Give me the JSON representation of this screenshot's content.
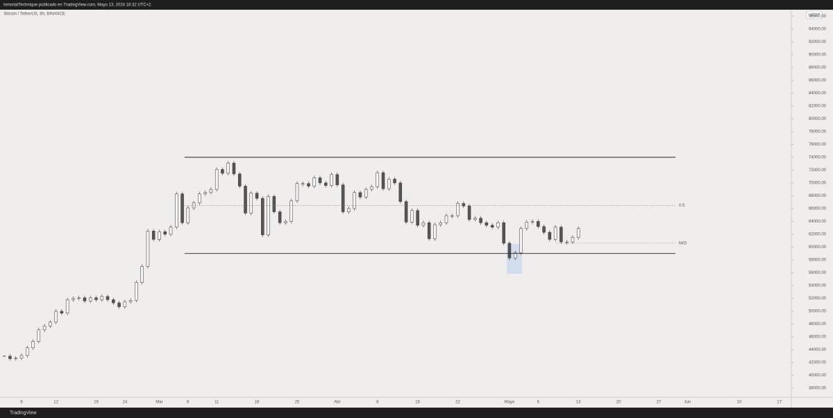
{
  "chart_data": {
    "type": "candlestick",
    "header": "InmortalTechnique publicado en TradingView.com, Mayo 13, 2024 16:32 UTC+2",
    "title": "Bitcoin / TetherUS, 8h, BINANCE",
    "currency": "USDT",
    "brand": "TradingView",
    "up_color": "#f4f4f4",
    "down_color": "#555555",
    "categories": [
      null,
      null,
      null,
      "6",
      null,
      null,
      null,
      null,
      null,
      "12",
      null,
      null,
      null,
      null,
      null,
      null,
      "19",
      null,
      null,
      null,
      null,
      "24",
      null,
      null,
      null,
      null,
      null,
      "Mar",
      null,
      null,
      null,
      null,
      "6",
      null,
      null,
      null,
      null,
      "11",
      null,
      null,
      null,
      null,
      null,
      null,
      "18",
      null,
      null,
      null,
      null,
      null,
      null,
      "25",
      null,
      null,
      null,
      null,
      null,
      null,
      "Abr",
      null,
      null,
      null,
      null,
      null,
      null,
      "8",
      null,
      null,
      null,
      null,
      null,
      null,
      "15",
      null,
      null,
      null,
      null,
      null,
      null,
      "22",
      null,
      null,
      null,
      null,
      null,
      null,
      null,
      null,
      "Mayo",
      null,
      null,
      null,
      null,
      "6",
      null,
      null,
      null,
      null,
      null,
      null,
      "13",
      null,
      null,
      null,
      null,
      null,
      null,
      "20",
      null,
      null,
      null,
      null,
      null,
      null,
      "27",
      null,
      null,
      null,
      null,
      "Jun",
      null,
      null,
      null,
      null,
      null,
      null,
      null,
      null,
      "10",
      null,
      null,
      null,
      null,
      null,
      null,
      "17",
      null,
      null,
      null
    ],
    "values": [
      43000,
      42600,
      42700,
      43100,
      44300,
      45300,
      47100,
      47700,
      48300,
      50000,
      49700,
      51800,
      52000,
      52100,
      51600,
      52100,
      51800,
      52300,
      51800,
      51300,
      50700,
      51500,
      51700,
      54500,
      57000,
      62500,
      61200,
      62400,
      62000,
      63100,
      68300,
      63800,
      66100,
      66900,
      68300,
      68500,
      69000,
      72100,
      71500,
      73100,
      71400,
      69500,
      65300,
      68400,
      67600,
      61900,
      67900,
      65500,
      63800,
      64000,
      67200,
      69900,
      69900,
      69500,
      70800,
      70000,
      69600,
      71300,
      69700,
      65500,
      66000,
      68500,
      67800,
      69000,
      69400,
      71600,
      69100,
      70600,
      70000,
      67100,
      63900,
      65700,
      63400,
      63800,
      61300,
      63500,
      63800,
      64900,
      64900,
      66800,
      66400,
      64300,
      64500,
      63800,
      63400,
      63100,
      63800,
      60600,
      58300,
      59100,
      62900,
      63900,
      64000,
      63200,
      62300,
      61200,
      63100,
      60800,
      60800,
      61500,
      62900,
      null,
      null,
      null,
      null,
      null,
      null,
      null,
      null,
      null,
      null,
      null,
      null,
      null,
      null,
      null,
      null,
      null,
      null,
      null,
      null,
      null,
      null,
      null,
      null,
      null,
      null,
      null,
      null,
      null,
      null,
      null,
      null,
      null,
      null,
      null,
      null,
      null,
      null
    ],
    "levels": [
      {
        "value": 74000
      },
      {
        "value": 66500,
        "label": "0.5",
        "dashed": true
      },
      {
        "value": 60600,
        "label": "M/O",
        "dashed": true
      },
      {
        "value": 59000
      }
    ],
    "ylim": [
      36600,
      97000
    ],
    "yticks": [
      {
        "value": 96000,
        "label": "96000.00"
      },
      {
        "value": 94000,
        "label": "94000.00"
      },
      {
        "value": 92000,
        "label": "92000.00"
      },
      {
        "value": 90000,
        "label": "90000.00"
      },
      {
        "value": 88000,
        "label": "88000.00"
      },
      {
        "value": 86000,
        "label": "86000.00"
      },
      {
        "value": 84000,
        "label": "84000.00"
      },
      {
        "value": 82000,
        "label": "82000.00"
      },
      {
        "value": 80000,
        "label": "80000.00"
      },
      {
        "value": 78000,
        "label": "78000.00"
      },
      {
        "value": 76000,
        "label": "76000.00"
      },
      {
        "value": 74000,
        "label": "74000.00"
      },
      {
        "value": 72000,
        "label": "72000.00"
      },
      {
        "value": 70000,
        "label": "70000.00"
      },
      {
        "value": 68000,
        "label": "68000.00"
      },
      {
        "value": 66000,
        "label": "66000.00"
      },
      {
        "value": 64000,
        "label": "64000.00"
      },
      {
        "value": 62000,
        "label": "62000.00"
      },
      {
        "value": 60000,
        "label": "60000.00"
      },
      {
        "value": 58000,
        "label": "58000.00"
      },
      {
        "value": 56000,
        "label": "56000.00"
      },
      {
        "value": 54000,
        "label": "54000.00"
      },
      {
        "value": 52000,
        "label": "52000.00"
      },
      {
        "value": 50000,
        "label": "50000.00"
      },
      {
        "value": 48000,
        "label": "48000.00"
      },
      {
        "value": 46000,
        "label": "46000.00"
      },
      {
        "value": 44000,
        "label": "44000.00"
      },
      {
        "value": 42000,
        "label": "42000.00"
      },
      {
        "value": 40000,
        "label": "40000.00"
      },
      {
        "value": 38000,
        "label": "38000.00"
      }
    ]
  }
}
